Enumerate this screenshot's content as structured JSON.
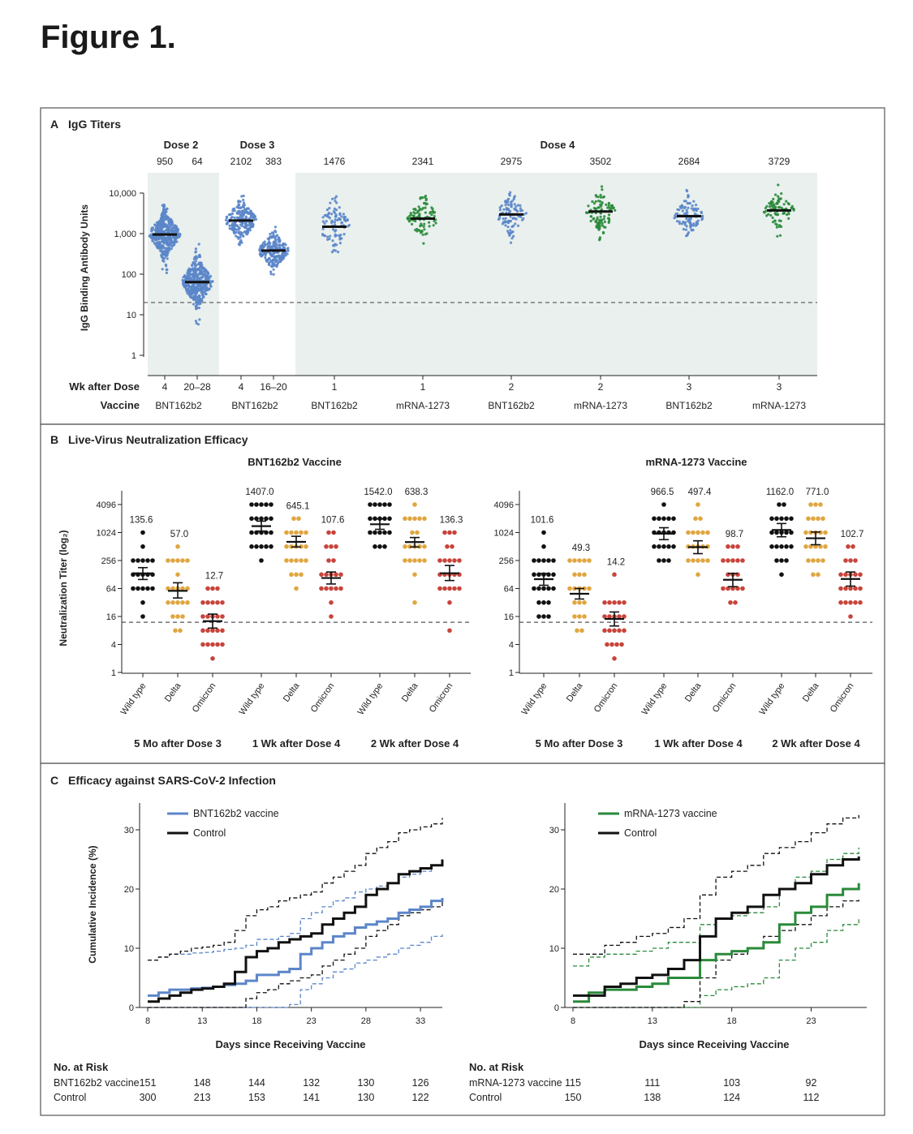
{
  "figure_title": "Figure 1.",
  "colors": {
    "bnt": "#5b86c9",
    "mrna": "#2a8a3a",
    "wild": "#111111",
    "delta": "#e0a640",
    "omicron": "#c8443a",
    "control": "#111111",
    "shade": "#e9f0ee"
  },
  "panelA": {
    "label": "A",
    "title": "IgG Titers",
    "dose_headers": [
      "Dose 2",
      "Dose 3",
      "Dose 4"
    ],
    "ylabel": "IgG Binding Antibody Units",
    "yticks": [
      "10,000",
      "1,000",
      "100",
      "10",
      "1"
    ],
    "wk_label": "Wk after Dose",
    "vaccine_label": "Vaccine"
  },
  "panelB": {
    "label": "B",
    "title": "Live-Virus Neutralization Efficacy",
    "ylabel": "Neutralization Titer (log₂)",
    "yticks": [
      "4096",
      "1024",
      "256",
      "64",
      "16",
      "4",
      "1"
    ],
    "variant_labels": [
      "Wild type",
      "Delta",
      "Omicron"
    ],
    "time_labels": [
      "5 Mo after Dose 3",
      "1 Wk after Dose 4",
      "2 Wk after Dose 4"
    ]
  },
  "panelC": {
    "label": "C",
    "title": "Efficacy against SARS-CoV-2 Infection",
    "ylabel": "Cumulative Incidence (%)",
    "yticks": [
      "30",
      "20",
      "10",
      "0"
    ],
    "xlabel": "Days since Receiving Vaccine",
    "at_risk_title": "No. at Risk"
  },
  "chart_data": [
    {
      "type": "scatter",
      "title": "IgG Titers",
      "ylabel": "IgG Binding Antibody Units",
      "yscale": "log10",
      "ylim": [
        1,
        10000
      ],
      "threshold": 20,
      "groups": [
        {
          "dose": "Dose 2",
          "wk": "4",
          "vaccine": "BNT162b2",
          "gmt": 950,
          "gmt_label": "950"
        },
        {
          "dose": "Dose 2",
          "wk": "20–28",
          "vaccine": "",
          "gmt": 64,
          "gmt_label": "64"
        },
        {
          "dose": "Dose 3",
          "wk": "4",
          "vaccine": "BNT162b2",
          "gmt": 2102,
          "gmt_label": "2102"
        },
        {
          "dose": "Dose 3",
          "wk": "16–20",
          "vaccine": "",
          "gmt": 383,
          "gmt_label": "383"
        },
        {
          "dose": "Dose 4",
          "wk": "1",
          "vaccine": "BNT162b2",
          "gmt": 1476,
          "gmt_label": "1476"
        },
        {
          "dose": "Dose 4",
          "wk": "1",
          "vaccine": "mRNA-1273",
          "gmt": 2341,
          "gmt_label": "2341"
        },
        {
          "dose": "Dose 4",
          "wk": "2",
          "vaccine": "BNT162b2",
          "gmt": 2975,
          "gmt_label": "2975"
        },
        {
          "dose": "Dose 4",
          "wk": "2",
          "vaccine": "mRNA-1273",
          "gmt": 3502,
          "gmt_label": "3502"
        },
        {
          "dose": "Dose 4",
          "wk": "3",
          "vaccine": "BNT162b2",
          "gmt": 2684,
          "gmt_label": "2684"
        },
        {
          "dose": "Dose 4",
          "wk": "3",
          "vaccine": "mRNA-1273",
          "gmt": 3729,
          "gmt_label": "3729"
        }
      ]
    },
    {
      "type": "scatter",
      "title": "BNT162b2 Vaccine",
      "ylabel": "Neutralization Titer (log₂)",
      "yscale": "log2",
      "ylim": [
        1,
        4096
      ],
      "threshold": 12,
      "groups": [
        {
          "time": "5 Mo after Dose 3",
          "variant": "Wild type",
          "gmt": 135.6,
          "gmt_label": "135.6",
          "lo": 100,
          "hi": 180
        },
        {
          "time": "5 Mo after Dose 3",
          "variant": "Delta",
          "gmt": 57.0,
          "gmt_label": "57.0",
          "lo": 40,
          "hi": 85
        },
        {
          "time": "5 Mo after Dose 3",
          "variant": "Omicron",
          "gmt": 12.7,
          "gmt_label": "12.7",
          "lo": 9,
          "hi": 18
        },
        {
          "time": "1 Wk after Dose 4",
          "variant": "Wild type",
          "gmt": 1407.0,
          "gmt_label": "1407.0",
          "lo": 1100,
          "hi": 1800
        },
        {
          "time": "1 Wk after Dose 4",
          "variant": "Delta",
          "gmt": 645.1,
          "gmt_label": "645.1",
          "lo": 500,
          "hi": 850
        },
        {
          "time": "1 Wk after Dose 4",
          "variant": "Omicron",
          "gmt": 107.6,
          "gmt_label": "107.6",
          "lo": 80,
          "hi": 145
        },
        {
          "time": "2 Wk after Dose 4",
          "variant": "Wild type",
          "gmt": 1542.0,
          "gmt_label": "1542.0",
          "lo": 1200,
          "hi": 2000
        },
        {
          "time": "2 Wk after Dose 4",
          "variant": "Delta",
          "gmt": 638.3,
          "gmt_label": "638.3",
          "lo": 500,
          "hi": 800
        },
        {
          "time": "2 Wk after Dose 4",
          "variant": "Omicron",
          "gmt": 136.3,
          "gmt_label": "136.3",
          "lo": 95,
          "hi": 200
        }
      ]
    },
    {
      "type": "scatter",
      "title": "mRNA-1273 Vaccine",
      "ylabel": "Neutralization Titer (log₂)",
      "yscale": "log2",
      "ylim": [
        1,
        4096
      ],
      "threshold": 12,
      "groups": [
        {
          "time": "5 Mo after Dose 3",
          "variant": "Wild type",
          "gmt": 101.6,
          "gmt_label": "101.6",
          "lo": 75,
          "hi": 135
        },
        {
          "time": "5 Mo after Dose 3",
          "variant": "Delta",
          "gmt": 49.3,
          "gmt_label": "49.3",
          "lo": 38,
          "hi": 64
        },
        {
          "time": "5 Mo after Dose 3",
          "variant": "Omicron",
          "gmt": 14.2,
          "gmt_label": "14.2",
          "lo": 10,
          "hi": 20
        },
        {
          "time": "1 Wk after Dose 4",
          "variant": "Wild type",
          "gmt": 966.5,
          "gmt_label": "966.5",
          "lo": 720,
          "hi": 1300
        },
        {
          "time": "1 Wk after Dose 4",
          "variant": "Delta",
          "gmt": 497.4,
          "gmt_label": "497.4",
          "lo": 360,
          "hi": 680
        },
        {
          "time": "1 Wk after Dose 4",
          "variant": "Omicron",
          "gmt": 98.7,
          "gmt_label": "98.7",
          "lo": 70,
          "hi": 135
        },
        {
          "time": "2 Wk after Dose 4",
          "variant": "Wild type",
          "gmt": 1162.0,
          "gmt_label": "1162.0",
          "lo": 830,
          "hi": 1600
        },
        {
          "time": "2 Wk after Dose 4",
          "variant": "Delta",
          "gmt": 771.0,
          "gmt_label": "771.0",
          "lo": 560,
          "hi": 1050
        },
        {
          "time": "2 Wk after Dose 4",
          "variant": "Omicron",
          "gmt": 102.7,
          "gmt_label": "102.7",
          "lo": 72,
          "hi": 145
        }
      ]
    },
    {
      "type": "line",
      "xlabel": "Days since Receiving Vaccine",
      "ylabel": "Cumulative Incidence (%)",
      "xlim": [
        8,
        35
      ],
      "ylim": [
        0,
        30
      ],
      "xticks": [
        8,
        13,
        18,
        23,
        28,
        33
      ],
      "series": [
        {
          "name": "BNT162b2 vaccine",
          "color": "#5b86c9",
          "x": [
            8,
            9,
            10,
            11,
            12,
            13,
            14,
            15,
            16,
            17,
            18,
            19,
            20,
            21,
            22,
            23,
            24,
            25,
            26,
            27,
            28,
            29,
            30,
            31,
            32,
            33,
            34,
            35
          ],
          "y": [
            2,
            2.5,
            3,
            3,
            3.2,
            3.3,
            3.5,
            3.8,
            4,
            4.5,
            5.5,
            5.5,
            6,
            6.5,
            9,
            10,
            11,
            12,
            12.5,
            13.5,
            14,
            14.5,
            15,
            16,
            16.5,
            17,
            18,
            18.5
          ]
        },
        {
          "name": "Control",
          "color": "#111111",
          "x": [
            8,
            9,
            10,
            11,
            12,
            13,
            14,
            15,
            16,
            17,
            18,
            19,
            20,
            21,
            22,
            23,
            24,
            25,
            26,
            27,
            28,
            29,
            30,
            31,
            32,
            33,
            34,
            35
          ],
          "y": [
            1,
            1.5,
            2,
            2.5,
            3,
            3.2,
            3.5,
            4,
            6,
            8.5,
            9.5,
            10,
            11,
            11.5,
            12,
            12.5,
            14,
            15,
            16,
            17,
            19,
            20,
            21,
            22.5,
            23,
            23.5,
            24,
            25
          ]
        }
      ],
      "legend": [
        "BNT162b2 vaccine",
        "Control"
      ],
      "at_risk": {
        "days": [
          8,
          13,
          18,
          23,
          28,
          33
        ],
        "rows": [
          {
            "label": "BNT162b2 vaccine",
            "values": [
              "151",
              "148",
              "144",
              "132",
              "130",
              "126"
            ]
          },
          {
            "label": "Control",
            "values": [
              "300",
              "213",
              "153",
              "141",
              "130",
              "122"
            ]
          }
        ]
      }
    },
    {
      "type": "line",
      "xlabel": "Days since Receiving Vaccine",
      "ylabel": "Cumulative Incidence (%)",
      "xlim": [
        8,
        26.5
      ],
      "ylim": [
        0,
        30
      ],
      "xticks": [
        8,
        13,
        18,
        23
      ],
      "series": [
        {
          "name": "mRNA-1273 vaccine",
          "color": "#2a8a3a",
          "x": [
            8,
            9,
            10,
            11,
            12,
            13,
            14,
            15,
            16,
            17,
            18,
            19,
            20,
            21,
            22,
            23,
            24,
            25,
            26
          ],
          "y": [
            1,
            2.5,
            3,
            3,
            3.5,
            4,
            5,
            5,
            8,
            9,
            9.5,
            10,
            11,
            14,
            16,
            17,
            19,
            20,
            21
          ]
        },
        {
          "name": "Control",
          "color": "#111111",
          "x": [
            8,
            9,
            10,
            11,
            12,
            13,
            14,
            15,
            16,
            17,
            18,
            19,
            20,
            21,
            22,
            23,
            24,
            25,
            26
          ],
          "y": [
            2,
            2,
            3.5,
            4,
            5,
            5.5,
            6.5,
            8,
            12,
            15,
            16,
            17,
            19,
            20,
            21,
            22.5,
            24,
            25,
            25.5
          ]
        }
      ],
      "legend": [
        "mRNA-1273 vaccine",
        "Control"
      ],
      "at_risk": {
        "days": [
          8,
          13,
          18,
          23
        ],
        "rows": [
          {
            "label": "mRNA-1273 vaccine",
            "values": [
              "115",
              "111",
              "103",
              "92"
            ]
          },
          {
            "label": "Control",
            "values": [
              "150",
              "138",
              "124",
              "112"
            ]
          }
        ]
      }
    }
  ]
}
